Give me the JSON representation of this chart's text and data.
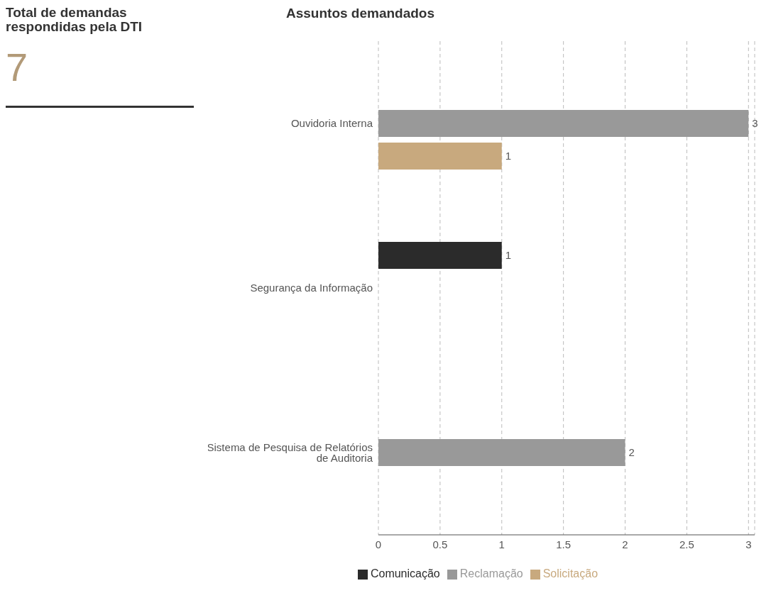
{
  "chart_data": [
    {
      "type": "other",
      "title": "Total de demandas respondidas pela DTI",
      "annotations": [
        "7"
      ]
    },
    {
      "type": "bar",
      "orientation": "horizontal",
      "title": "Assuntos demandados",
      "categories": [
        "Ouvidoria Interna",
        "Segurança da Informação",
        "Sistema de Pesquisa de Relatórios de Auditoria"
      ],
      "series": [
        {
          "name": "Comunicação",
          "color": "#2b2b2b",
          "values": [
            null,
            1,
            null
          ]
        },
        {
          "name": "Reclamação",
          "color": "#999999",
          "values": [
            3,
            null,
            2
          ]
        },
        {
          "name": "Solicitação",
          "color": "#c8a97e",
          "values": [
            1,
            null,
            null
          ]
        }
      ],
      "xlim": [
        0,
        3.05
      ],
      "xticks": [
        0,
        0.5,
        1,
        1.5,
        2,
        2.5,
        3
      ],
      "grid": "x",
      "data_labels": true,
      "legend": "bottom"
    }
  ]
}
